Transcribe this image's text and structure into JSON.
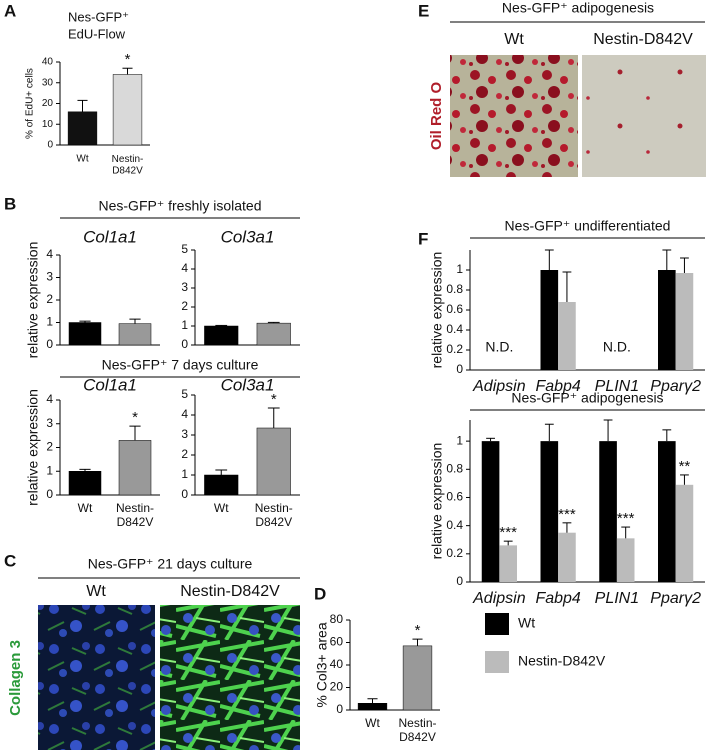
{
  "panel_letters": [
    "A",
    "B",
    "C",
    "D",
    "E",
    "F"
  ],
  "panel_C": {
    "header": "Nes-GFP⁺ 21 days culture",
    "columns": [
      "Wt",
      "Nestin-D842V"
    ],
    "stain": "Collagen 3"
  },
  "panel_E": {
    "header": "Nes-GFP⁺ adipogenesis",
    "columns": [
      "Wt",
      "Nestin-D842V"
    ],
    "stain": "Oil Red O"
  },
  "chart_data": [
    {
      "type": "bar",
      "title": "Nes-GFP⁺",
      "subtitle": "EdU-Flow",
      "ylabel": "% of EdU+ cells",
      "categories": [
        "Wt",
        "Nestin-D842V"
      ],
      "values": [
        16,
        34
      ],
      "errors": [
        5.5,
        3
      ],
      "colors": [
        "#111111",
        "#d9d9d9"
      ],
      "significance": [
        null,
        "*"
      ],
      "ylim": [
        0,
        40
      ],
      "yticks": [
        0,
        10,
        20,
        30,
        40
      ]
    },
    {
      "type": "bar",
      "header": "Nes-GFP⁺ freshly isolated",
      "title": "Col1a1",
      "ylabel": "relative expression",
      "values": [
        1.0,
        0.95
      ],
      "errors": [
        0.06,
        0.2
      ],
      "colors": [
        "#000000",
        "#999999"
      ],
      "ylim": [
        0,
        4
      ],
      "yticks": [
        0,
        1,
        2,
        3,
        4
      ]
    },
    {
      "type": "bar",
      "title": "Col3a1",
      "values": [
        1.0,
        1.15
      ],
      "errors": [
        0.03,
        0.04
      ],
      "colors": [
        "#000000",
        "#999999"
      ],
      "ylim": [
        0,
        5
      ],
      "yticks": [
        0,
        1,
        2,
        3,
        4,
        5
      ]
    },
    {
      "type": "bar",
      "header": "Nes-GFP⁺ 7 days culture",
      "title": "Col1a1",
      "ylabel": "relative expression",
      "categories": [
        "Wt",
        "Nestin-D842V"
      ],
      "values": [
        1.0,
        2.3
      ],
      "errors": [
        0.08,
        0.6
      ],
      "colors": [
        "#000000",
        "#999999"
      ],
      "significance": [
        null,
        "*"
      ],
      "ylim": [
        0,
        4
      ],
      "yticks": [
        0,
        1,
        2,
        3,
        4
      ]
    },
    {
      "type": "bar",
      "title": "Col3a1",
      "categories": [
        "Wt",
        "Nestin-D842V"
      ],
      "values": [
        1.0,
        3.35
      ],
      "errors": [
        0.25,
        1.0
      ],
      "colors": [
        "#000000",
        "#999999"
      ],
      "significance": [
        null,
        "*"
      ],
      "ylim": [
        0,
        5
      ],
      "yticks": [
        0,
        1,
        2,
        3,
        4,
        5
      ]
    },
    {
      "type": "bar",
      "ylabel": "% Col3+ area",
      "categories": [
        "Wt",
        "Nestin-D842V"
      ],
      "values": [
        6,
        57
      ],
      "errors": [
        4,
        6
      ],
      "colors": [
        "#000000",
        "#999999"
      ],
      "significance": [
        null,
        "*"
      ],
      "ylim": [
        0,
        80
      ],
      "yticks": [
        0,
        20,
        40,
        60,
        80
      ]
    },
    {
      "type": "grouped-bar",
      "header": "Nes-GFP⁺ undifferentiated",
      "ylabel": "relative expression",
      "categories": [
        "Adipsin",
        "Fabp4",
        "PLIN1",
        "Pparγ2"
      ],
      "category_notes": [
        "N.D.",
        null,
        "N.D.",
        null
      ],
      "series": [
        {
          "color": "#000000",
          "values": [
            null,
            1.0,
            null,
            1.0
          ],
          "errors": [
            null,
            0.2,
            null,
            0.2
          ]
        },
        {
          "color": "#bbbbbb",
          "values": [
            null,
            0.68,
            null,
            0.97
          ],
          "errors": [
            null,
            0.3,
            null,
            0.15
          ]
        }
      ],
      "ylim": [
        0,
        1.2
      ],
      "yticks": [
        0,
        0.2,
        0.4,
        0.6,
        0.8,
        1
      ]
    },
    {
      "type": "grouped-bar",
      "header": "Nes-GFP⁺ adipogenesis",
      "ylabel": "relative expression",
      "categories": [
        "Adipsin",
        "Fabp4",
        "PLIN1",
        "Pparγ2"
      ],
      "series": [
        {
          "name": "Wt",
          "color": "#000000",
          "values": [
            1.0,
            1.0,
            1.0,
            1.0
          ],
          "errors": [
            0.02,
            0.12,
            0.15,
            0.08
          ]
        },
        {
          "name": "Nestin-D842V",
          "color": "#bbbbbb",
          "values": [
            0.26,
            0.35,
            0.31,
            0.69
          ],
          "errors": [
            0.03,
            0.07,
            0.08,
            0.07
          ],
          "significance": [
            "***",
            "***",
            "***",
            "**"
          ]
        }
      ],
      "ylim": [
        0,
        1.15
      ],
      "yticks": [
        0,
        0.2,
        0.4,
        0.6,
        0.8,
        1
      ]
    }
  ]
}
